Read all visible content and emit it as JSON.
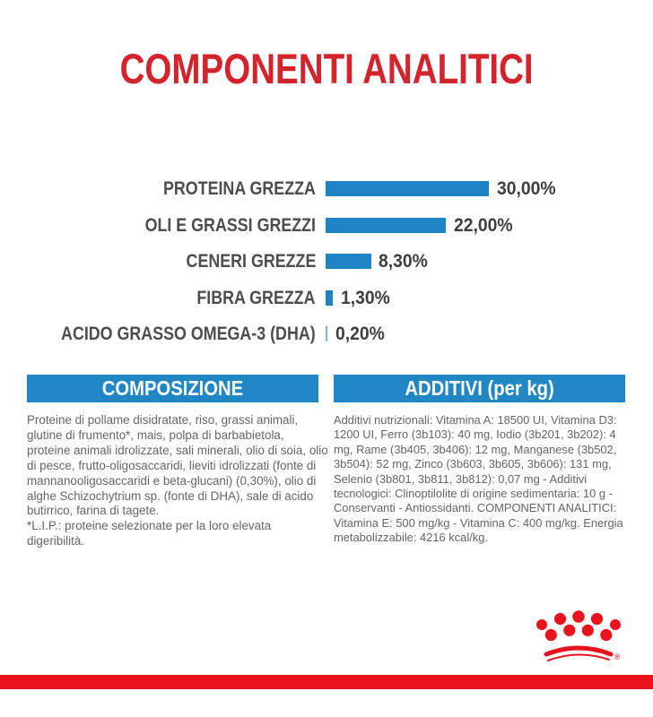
{
  "page": {
    "title": "COMPONENTI ANALITICI"
  },
  "chart_data": {
    "type": "bar",
    "orientation": "horizontal",
    "title": "COMPONENTI ANALITICI",
    "unit": "%",
    "categories": [
      "PROTEINA GREZZA",
      "OLI E GRASSI GREZZI",
      "CENERI GREZZE",
      "FIBRA GREZZA",
      "ACIDO GRASSO OMEGA-3 (DHA)"
    ],
    "values": [
      30.0,
      22.0,
      8.3,
      1.3,
      0.2
    ],
    "value_labels": [
      "30,00%",
      "22,00%",
      "8,30%",
      "1,30%",
      "0,20%"
    ],
    "xlim": [
      0,
      33
    ],
    "grid": false,
    "legend": false,
    "bar_color": "#1e84c4",
    "thin_bar_color": "#79b6da"
  },
  "sections": {
    "composizione": {
      "title": "COMPOSIZIONE",
      "body": "Proteine di pollame disidratate, riso, grassi animali, glutine di frumento*, mais, polpa di barbabietola, proteine animali idrolizzate, sali minerali, olio di soia, olio di pesce, frutto-oligosaccaridi, lieviti idrolizzati (fonte di mannanooligosaccaridi e beta-glucani) (0,30%), olio di alghe Schizochytrium sp. (fonte di DHA), sale di acido butirrico, farina di tagete.",
      "footnote": "*L.I.P.: proteine selezionate per la loro elevata digeribilità."
    },
    "additivi": {
      "title": "ADDITIVI (per kg)",
      "body": "Additivi nutrizionali: Vitamina A: 18500 UI, Vitamina D3: 1200 UI, Ferro (3b103): 40 mg, Iodio (3b201, 3b202): 4 mg, Rame (3b405, 3b406): 12 mg, Manganese (3b502, 3b504): 52 mg, Zinco (3b603, 3b605, 3b606): 131 mg, Selenio (3b801, 3b811, 3b812): 0,07 mg - Additivi tecnologici: Clinoptilolite di origine sedimentaria: 10 g - Conservanti - Antiossidanti. COMPONENTI ANALITICI: Vitamina E: 500 mg/kg - Vitamina C: 400 mg/kg. Energia metabolizzabile: 4216 kcal/kg."
    }
  },
  "logo": {
    "name": "royal-canin-crown",
    "registered_mark": "®"
  },
  "colors": {
    "title_red": "#d3232c",
    "brand_red": "#e8131c",
    "bar_blue": "#1e84c4",
    "header_blue": "#2186c4",
    "label_gray": "#4d4d4f",
    "value_gray": "#3e3e41",
    "body_gray": "#646569",
    "background": "#ffffff"
  }
}
